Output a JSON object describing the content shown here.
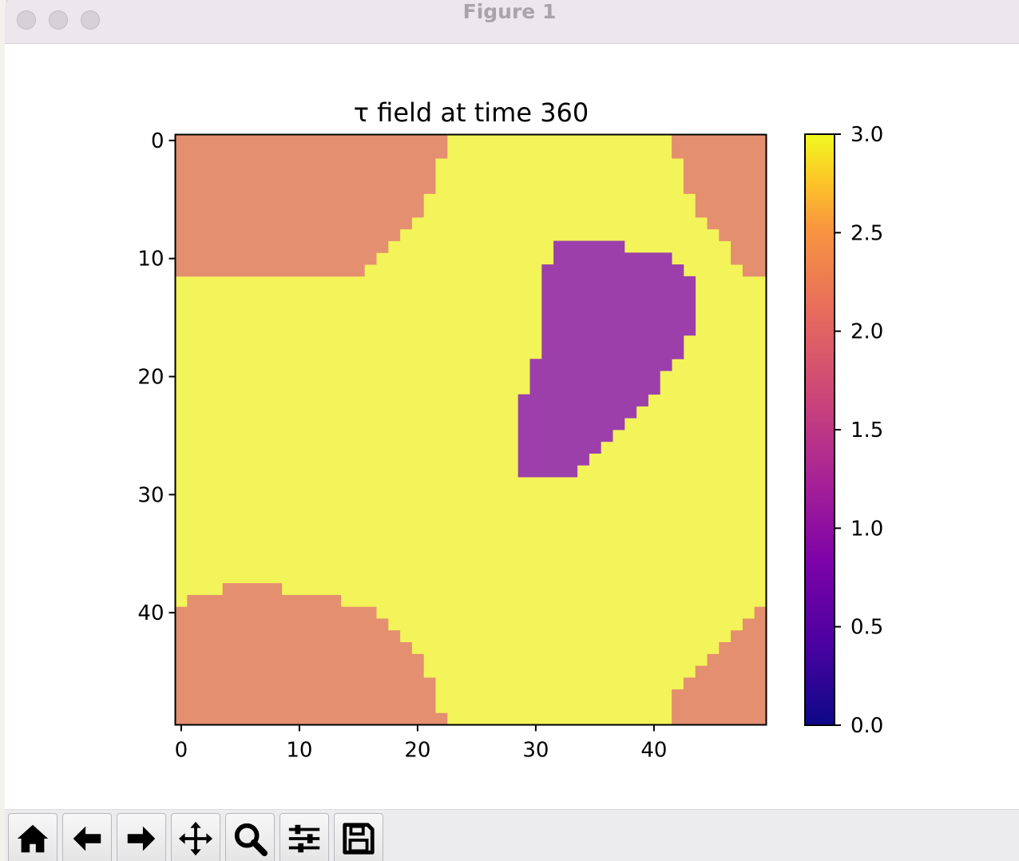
{
  "window": {
    "title": "Figure 1"
  },
  "toolbar": {
    "buttons": [
      {
        "name": "home-button",
        "icon": "home-icon"
      },
      {
        "name": "back-button",
        "icon": "arrow-left-icon"
      },
      {
        "name": "forward-button",
        "icon": "arrow-right-icon"
      },
      {
        "name": "pan-button",
        "icon": "move-icon"
      },
      {
        "name": "zoom-button",
        "icon": "magnifier-icon"
      },
      {
        "name": "configure-subplots-button",
        "icon": "sliders-icon"
      },
      {
        "name": "save-button",
        "icon": "floppy-disk-icon"
      }
    ]
  },
  "chart_data": {
    "type": "heatmap",
    "title": "τ field at time 360",
    "colormap": "plasma",
    "grid_size": [
      50,
      50
    ],
    "x_ticks": [
      0,
      10,
      20,
      30,
      40
    ],
    "y_ticks": [
      0,
      10,
      20,
      30,
      40
    ],
    "x_tick_labels": [
      "0",
      "10",
      "20",
      "30",
      "40"
    ],
    "y_tick_labels": [
      "0",
      "10",
      "20",
      "30",
      "40"
    ],
    "colorbar": {
      "range": [
        0.0,
        3.0
      ],
      "ticks": [
        0.0,
        0.5,
        1.0,
        1.5,
        2.0,
        2.5,
        3.0
      ],
      "tick_labels": [
        "0.0",
        "0.5",
        "1.0",
        "1.5",
        "2.0",
        "2.5",
        "3.0"
      ]
    },
    "value_colors": {
      "1": "#9c3fab",
      "2": "#e48f70",
      "3": "#f3f35a"
    },
    "background_value": 3,
    "rows": [
      {
        "y": 0,
        "runs": [
          [
            0,
            22,
            2
          ],
          [
            42,
            49,
            2
          ]
        ]
      },
      {
        "y": 1,
        "runs": [
          [
            0,
            22,
            2
          ],
          [
            42,
            49,
            2
          ]
        ]
      },
      {
        "y": 2,
        "runs": [
          [
            0,
            21,
            2
          ],
          [
            43,
            49,
            2
          ]
        ]
      },
      {
        "y": 3,
        "runs": [
          [
            0,
            21,
            2
          ],
          [
            43,
            49,
            2
          ]
        ]
      },
      {
        "y": 4,
        "runs": [
          [
            0,
            21,
            2
          ],
          [
            43,
            49,
            2
          ]
        ]
      },
      {
        "y": 5,
        "runs": [
          [
            0,
            20,
            2
          ],
          [
            44,
            49,
            2
          ]
        ]
      },
      {
        "y": 6,
        "runs": [
          [
            0,
            20,
            2
          ],
          [
            44,
            49,
            2
          ]
        ]
      },
      {
        "y": 7,
        "runs": [
          [
            0,
            19,
            2
          ],
          [
            45,
            49,
            2
          ]
        ]
      },
      {
        "y": 8,
        "runs": [
          [
            0,
            18,
            2
          ],
          [
            46,
            49,
            2
          ]
        ]
      },
      {
        "y": 9,
        "runs": [
          [
            0,
            17,
            2
          ],
          [
            32,
            37,
            1
          ],
          [
            47,
            49,
            2
          ]
        ]
      },
      {
        "y": 10,
        "runs": [
          [
            0,
            16,
            2
          ],
          [
            32,
            41,
            1
          ],
          [
            47,
            49,
            2
          ]
        ]
      },
      {
        "y": 11,
        "runs": [
          [
            0,
            15,
            2
          ],
          [
            31,
            42,
            1
          ],
          [
            48,
            49,
            2
          ]
        ]
      },
      {
        "y": 12,
        "runs": [
          [
            31,
            43,
            1
          ]
        ]
      },
      {
        "y": 13,
        "runs": [
          [
            31,
            43,
            1
          ]
        ]
      },
      {
        "y": 14,
        "runs": [
          [
            31,
            43,
            1
          ]
        ]
      },
      {
        "y": 15,
        "runs": [
          [
            31,
            43,
            1
          ]
        ]
      },
      {
        "y": 16,
        "runs": [
          [
            31,
            43,
            1
          ]
        ]
      },
      {
        "y": 17,
        "runs": [
          [
            31,
            42,
            1
          ]
        ]
      },
      {
        "y": 18,
        "runs": [
          [
            31,
            42,
            1
          ]
        ]
      },
      {
        "y": 19,
        "runs": [
          [
            30,
            41,
            1
          ]
        ]
      },
      {
        "y": 20,
        "runs": [
          [
            30,
            40,
            1
          ]
        ]
      },
      {
        "y": 21,
        "runs": [
          [
            30,
            40,
            1
          ]
        ]
      },
      {
        "y": 22,
        "runs": [
          [
            29,
            39,
            1
          ]
        ]
      },
      {
        "y": 23,
        "runs": [
          [
            29,
            38,
            1
          ]
        ]
      },
      {
        "y": 24,
        "runs": [
          [
            29,
            37,
            1
          ]
        ]
      },
      {
        "y": 25,
        "runs": [
          [
            29,
            36,
            1
          ]
        ]
      },
      {
        "y": 26,
        "runs": [
          [
            29,
            35,
            1
          ]
        ]
      },
      {
        "y": 27,
        "runs": [
          [
            29,
            34,
            1
          ]
        ]
      },
      {
        "y": 28,
        "runs": [
          [
            29,
            33,
            1
          ]
        ]
      },
      {
        "y": 38,
        "runs": [
          [
            4,
            8,
            2
          ]
        ]
      },
      {
        "y": 39,
        "runs": [
          [
            1,
            13,
            2
          ]
        ]
      },
      {
        "y": 40,
        "runs": [
          [
            0,
            16,
            2
          ],
          [
            49,
            49,
            2
          ]
        ]
      },
      {
        "y": 41,
        "runs": [
          [
            0,
            17,
            2
          ],
          [
            48,
            49,
            2
          ]
        ]
      },
      {
        "y": 42,
        "runs": [
          [
            0,
            18,
            2
          ],
          [
            47,
            49,
            2
          ]
        ]
      },
      {
        "y": 43,
        "runs": [
          [
            0,
            19,
            2
          ],
          [
            46,
            49,
            2
          ]
        ]
      },
      {
        "y": 44,
        "runs": [
          [
            0,
            20,
            2
          ],
          [
            45,
            49,
            2
          ]
        ]
      },
      {
        "y": 45,
        "runs": [
          [
            0,
            20,
            2
          ],
          [
            44,
            49,
            2
          ]
        ]
      },
      {
        "y": 46,
        "runs": [
          [
            0,
            21,
            2
          ],
          [
            43,
            49,
            2
          ]
        ]
      },
      {
        "y": 47,
        "runs": [
          [
            0,
            21,
            2
          ],
          [
            42,
            49,
            2
          ]
        ]
      },
      {
        "y": 48,
        "runs": [
          [
            0,
            21,
            2
          ],
          [
            42,
            49,
            2
          ]
        ]
      },
      {
        "y": 49,
        "runs": [
          [
            0,
            22,
            2
          ],
          [
            42,
            49,
            2
          ]
        ]
      }
    ]
  }
}
